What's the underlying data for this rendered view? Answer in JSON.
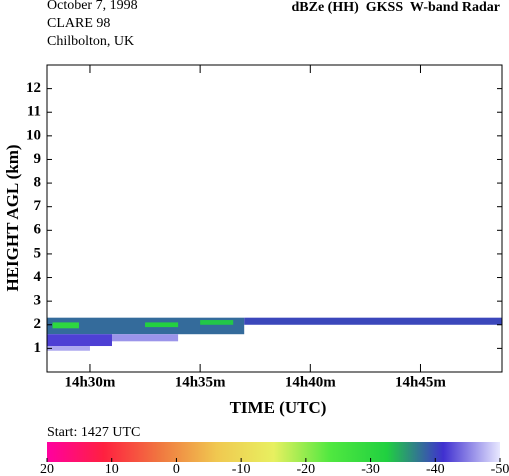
{
  "chart_data": {
    "type": "heatmap",
    "date": "October  7, 1998",
    "campaign": "CLARE 98",
    "location": "Chilbolton, UK",
    "title": "dBZe (HH)  GKSS  W-band Radar",
    "xlabel": "TIME (UTC)",
    "ylabel": "HEIGHT AGL (km)",
    "start_label": "Start: 1427 UTC",
    "xlim": [
      28.05,
      48.7
    ],
    "xticks": [
      {
        "value": 30,
        "label": "14h30m"
      },
      {
        "value": 35,
        "label": "14h35m"
      },
      {
        "value": 40,
        "label": "14h40m"
      },
      {
        "value": 45,
        "label": "14h45m"
      }
    ],
    "ylim": [
      0,
      13
    ],
    "yticks": [
      1,
      2,
      3,
      4,
      5,
      6,
      7,
      8,
      9,
      10,
      11,
      12
    ],
    "cells": [
      {
        "x": [
          28.05,
          37
        ],
        "y": [
          1.6,
          2.3
        ],
        "value": -38
      },
      {
        "x": [
          37,
          48.7
        ],
        "y": [
          2.0,
          2.3
        ],
        "value": -40
      },
      {
        "x": [
          28.05,
          31
        ],
        "y": [
          1.1,
          1.6
        ],
        "value": -42
      },
      {
        "x": [
          28.3,
          29.5
        ],
        "y": [
          1.85,
          2.1
        ],
        "value": -30
      },
      {
        "x": [
          32.5,
          34
        ],
        "y": [
          1.9,
          2.1
        ],
        "value": -32
      },
      {
        "x": [
          35,
          36.5
        ],
        "y": [
          2.0,
          2.2
        ],
        "value": -33
      },
      {
        "x": [
          28.05,
          30
        ],
        "y": [
          0.9,
          1.1
        ],
        "value": -47
      },
      {
        "x": [
          31,
          34
        ],
        "y": [
          1.3,
          1.6
        ],
        "value": -46
      }
    ],
    "colorbar": {
      "lim": [
        20,
        -50
      ],
      "ticks": [
        20,
        10,
        0,
        -10,
        -20,
        -30,
        -40,
        -50
      ],
      "colors": [
        "#ff00a0",
        "#ff2040",
        "#f07840",
        "#f0c850",
        "#e8f060",
        "#50e840",
        "#20d040",
        "#4030d0",
        "#e8e8ff"
      ]
    }
  }
}
